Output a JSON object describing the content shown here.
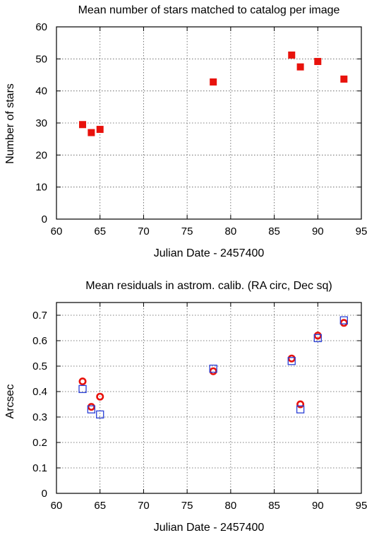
{
  "chart_data": [
    {
      "type": "scatter",
      "title": "Mean number of stars matched to catalog per image",
      "xlabel": "Julian Date - 2457400",
      "ylabel": "Number of stars",
      "xlim": [
        60,
        95
      ],
      "ylim": [
        0,
        60
      ],
      "xticks": [
        60,
        65,
        70,
        75,
        80,
        85,
        90,
        95
      ],
      "yticks": [
        0,
        10,
        20,
        30,
        40,
        50,
        60
      ],
      "grid": true,
      "series": [
        {
          "marker": "filled-square",
          "color": "#e8120c",
          "x": [
            63,
            64,
            65,
            78,
            87,
            88,
            90,
            93
          ],
          "y": [
            29.5,
            27,
            28,
            42.8,
            51.2,
            47.5,
            49.2,
            43.7
          ]
        }
      ]
    },
    {
      "type": "scatter",
      "title": "Mean residuals in astrom. calib. (RA circ, Dec sq)",
      "xlabel": "Julian Date - 2457400",
      "ylabel": "Arcsec",
      "xlim": [
        60,
        95
      ],
      "ylim": [
        0,
        0.75
      ],
      "xticks": [
        60,
        65,
        70,
        75,
        80,
        85,
        90,
        95
      ],
      "yticks": [
        0,
        0.1,
        0.2,
        0.3,
        0.4,
        0.5,
        0.6,
        0.7
      ],
      "grid": true,
      "series": [
        {
          "marker": "open-circle",
          "color": "#e8120c",
          "x": [
            63,
            64,
            65,
            78,
            87,
            88,
            90,
            93
          ],
          "y": [
            0.44,
            0.34,
            0.38,
            0.48,
            0.53,
            0.35,
            0.62,
            0.67
          ]
        },
        {
          "marker": "open-square",
          "color": "#2a3fd6",
          "x": [
            63,
            64,
            65,
            78,
            87,
            88,
            90,
            93
          ],
          "y": [
            0.41,
            0.33,
            0.31,
            0.49,
            0.52,
            0.33,
            0.61,
            0.68
          ]
        }
      ]
    }
  ]
}
